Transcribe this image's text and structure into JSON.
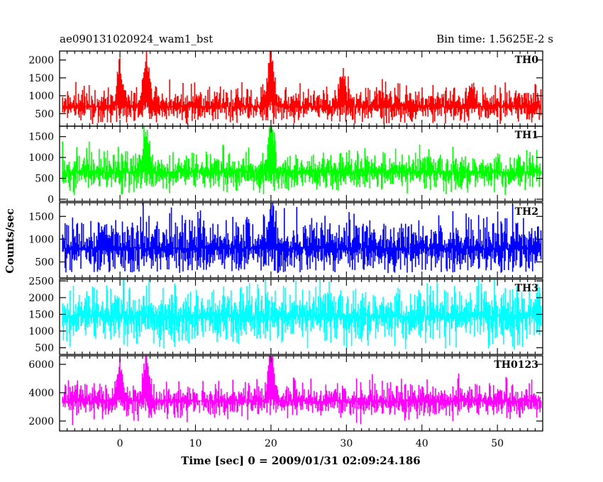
{
  "chart_data": {
    "type": "line",
    "title": "ae090131020924_wam1_bst",
    "subtitle": "Bin time: 1.5625E-2 s",
    "xlabel": "Time [sec] 0 = 2009/01/31 02:09:24.186",
    "ylabel": "Counts/sec",
    "xlim": [
      -8,
      56
    ],
    "x_ticks": [
      0,
      10,
      20,
      30,
      40,
      50
    ],
    "x_tick_labels": [
      "0",
      "10",
      "20",
      "30",
      "40",
      "50"
    ],
    "data_range": [
      -7.6,
      55.8
    ],
    "grid": false,
    "panels": [
      {
        "name": "TH0",
        "color": "#ff0000",
        "ylim": [
          150,
          2250
        ],
        "y_ticks": [
          500,
          1000,
          1500,
          2000
        ],
        "y_tick_labels": [
          "500",
          "1000",
          "1500",
          "2000"
        ],
        "baseline": 700,
        "noise": 260,
        "low_floor": 200,
        "peaks": [
          {
            "t": 0.0,
            "height": 900
          },
          {
            "t": 3.5,
            "height": 1150
          },
          {
            "t": 20.0,
            "height": 1300
          },
          {
            "t": 29.5,
            "height": 700
          },
          {
            "t": 46.5,
            "height": 500
          }
        ]
      },
      {
        "name": "TH1",
        "color": "#00ff00",
        "ylim": [
          -50,
          1750
        ],
        "y_ticks": [
          0,
          500,
          1000,
          1500
        ],
        "y_tick_labels": [
          "0",
          "500",
          "1000",
          "1500"
        ],
        "baseline": 650,
        "noise": 250,
        "low_floor": 100,
        "peaks": [
          {
            "t": 3.5,
            "height": 800
          },
          {
            "t": 20.0,
            "height": 1000
          }
        ]
      },
      {
        "name": "TH2",
        "color": "#0000ff",
        "ylim": [
          150,
          1800
        ],
        "y_ticks": [
          500,
          1000,
          1500
        ],
        "y_tick_labels": [
          "500",
          "1000",
          "1500"
        ],
        "baseline": 800,
        "noise": 330,
        "low_floor": 250,
        "peaks": [
          {
            "t": 20.0,
            "height": 700
          }
        ]
      },
      {
        "name": "TH3",
        "color": "#00ffff",
        "ylim": [
          300,
          2550
        ],
        "y_ticks": [
          500,
          1000,
          1500,
          2000,
          2500
        ],
        "y_tick_labels": [
          "500",
          "1000",
          "1500",
          "2000",
          "2500"
        ],
        "baseline": 1450,
        "noise": 470,
        "low_floor": 450,
        "peaks": []
      },
      {
        "name": "TH0123",
        "color": "#ff00ff",
        "ylim": [
          1300,
          6600
        ],
        "y_ticks": [
          2000,
          4000,
          6000
        ],
        "y_tick_labels": [
          "2000",
          "4000",
          "6000"
        ],
        "baseline": 3400,
        "noise": 650,
        "low_floor": 1700,
        "peaks": [
          {
            "t": 0.0,
            "height": 2100
          },
          {
            "t": 3.5,
            "height": 2600
          },
          {
            "t": 20.0,
            "height": 2900
          }
        ]
      }
    ]
  }
}
